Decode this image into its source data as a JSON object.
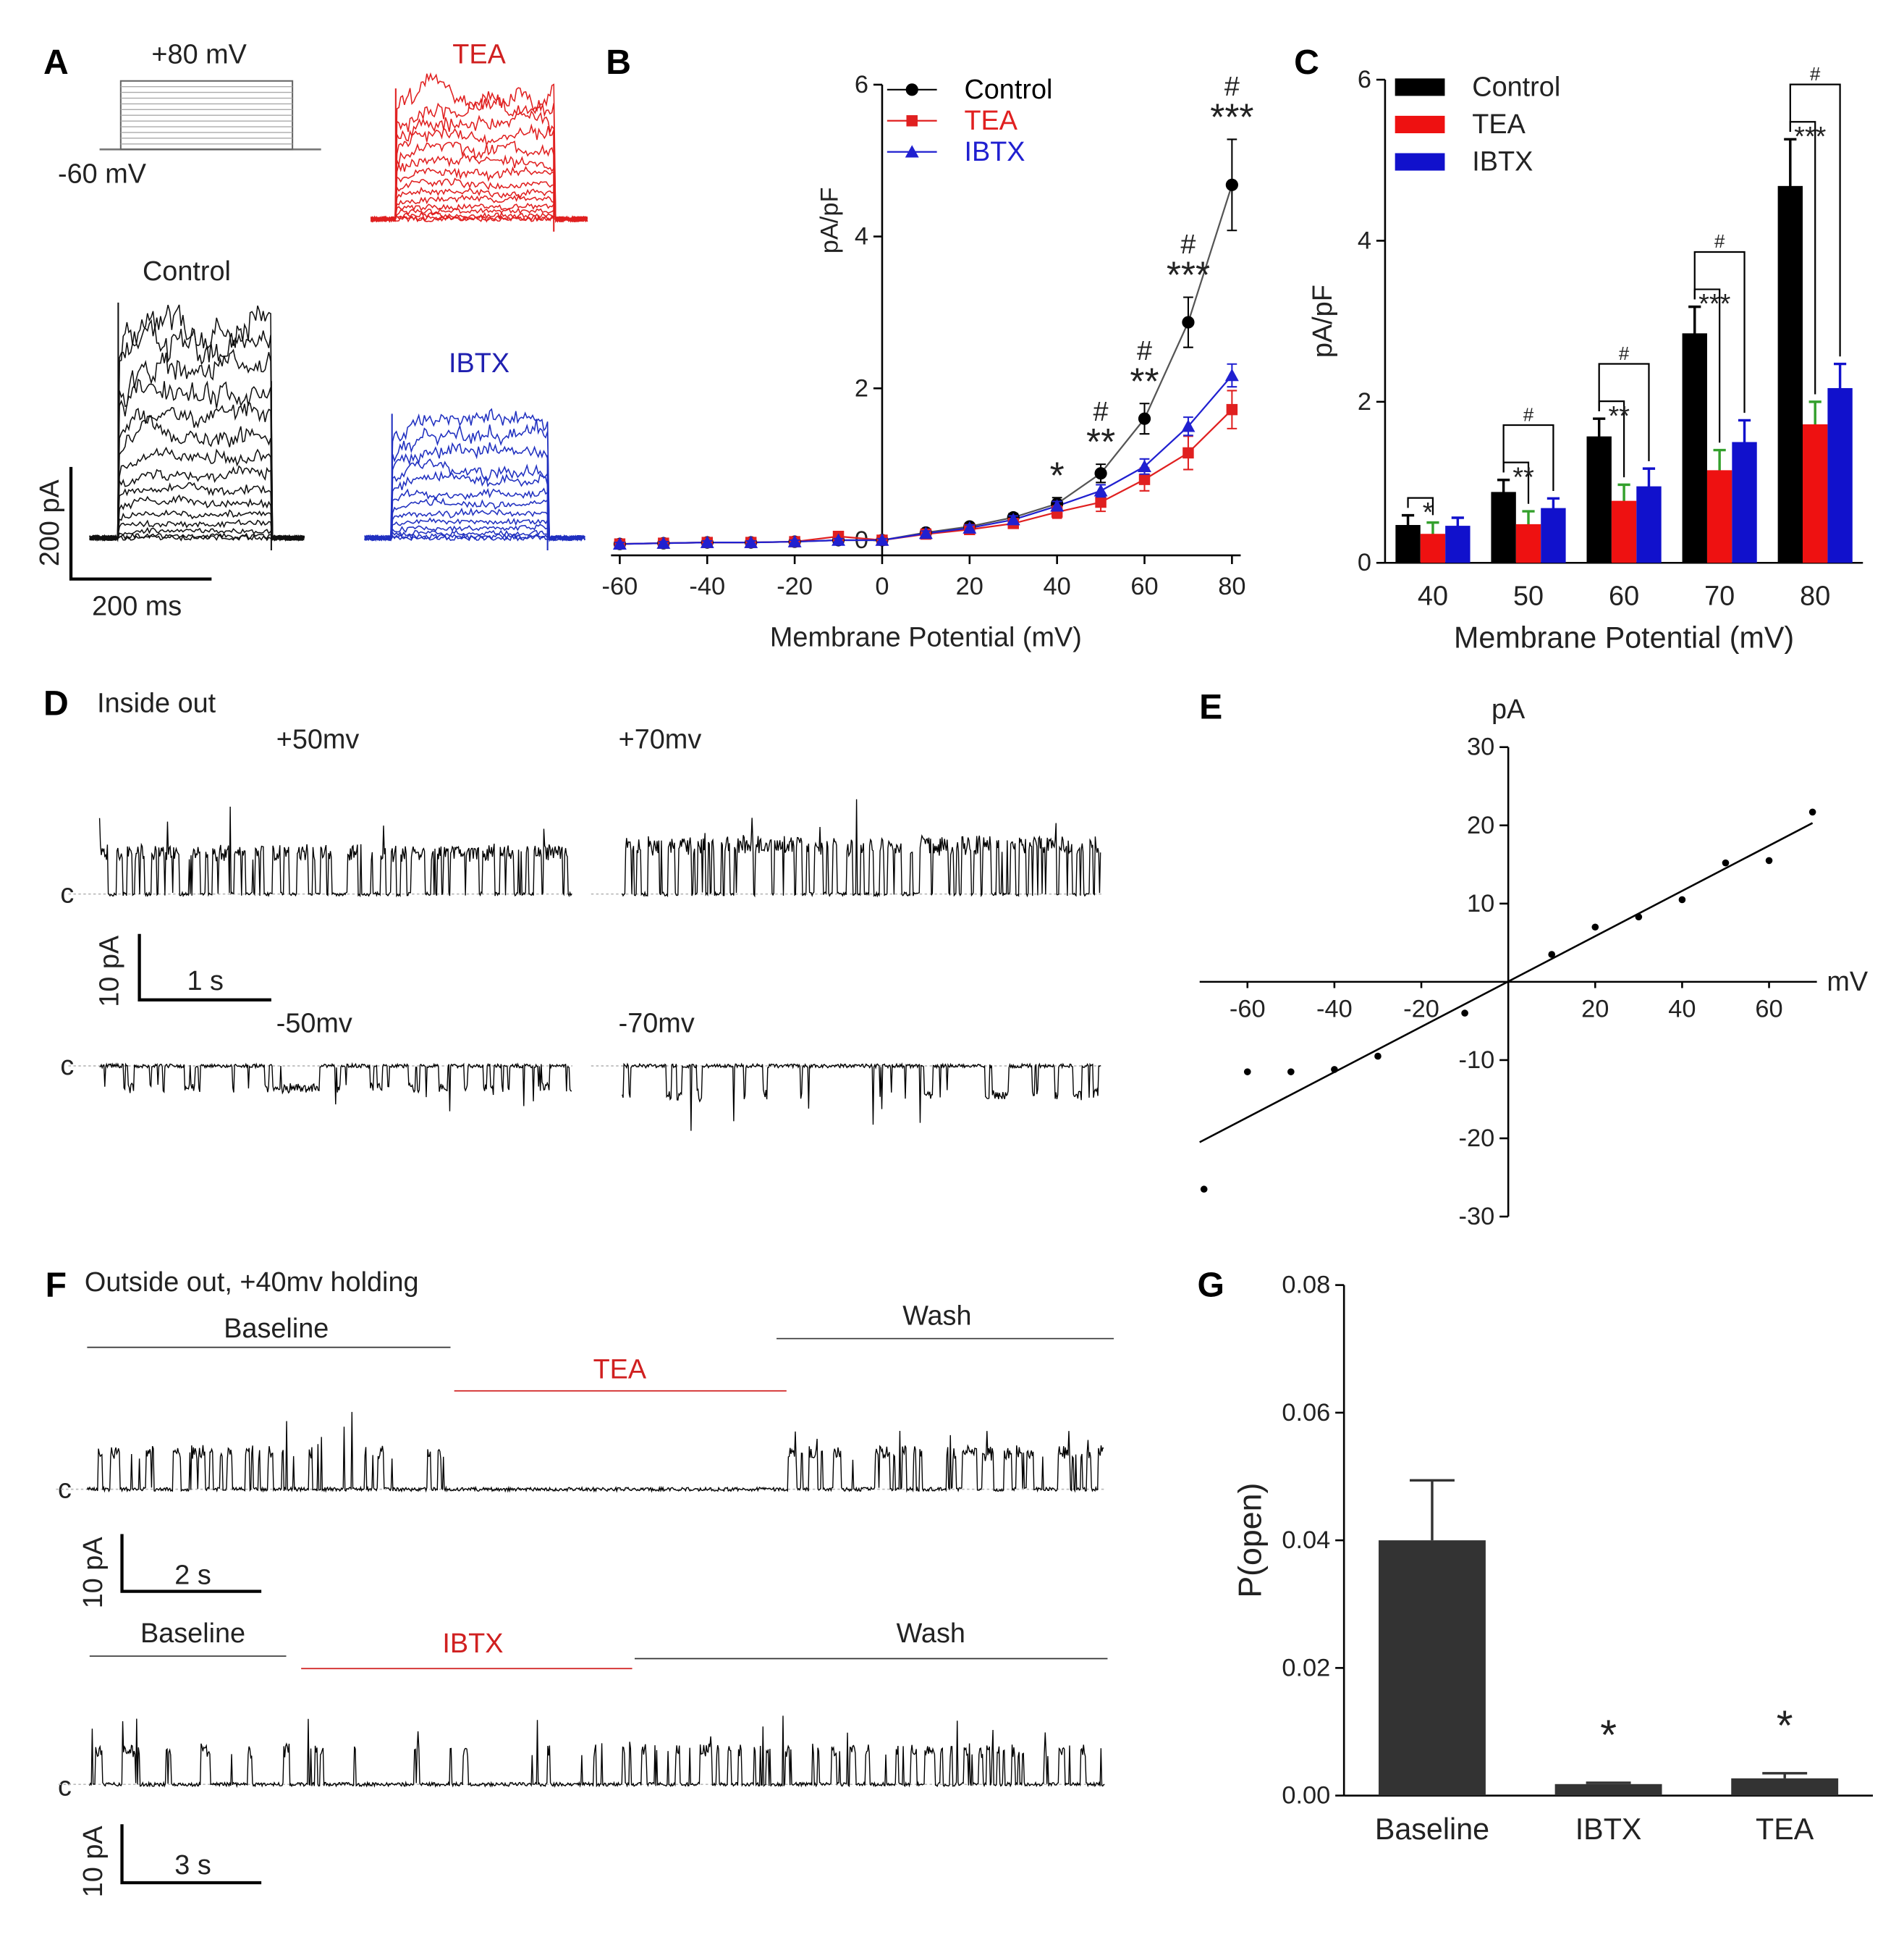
{
  "traces": {
    "a": {
      "letter": "A",
      "protocol_top": "+80 mV",
      "protocol_bottom": "-60 mV",
      "tea": "TEA",
      "control": "Control",
      "ibtx": "IBTX",
      "scale_y": "200 pA",
      "scale_x": "200 ms"
    },
    "d": {
      "letter": "D",
      "title": "Inside out",
      "labels": [
        "+50mv",
        "+70mv",
        "-50mv",
        "-70mv"
      ],
      "closed": "c",
      "scale_y": "10 pA",
      "scale_x": "1 s"
    },
    "f": {
      "letter": "F",
      "title": "Outside out, +40mv holding",
      "closed": "c",
      "top": {
        "baseline": "Baseline",
        "drug": "TEA",
        "wash": "Wash",
        "scale_y": "10 pA",
        "scale_x": "2 s"
      },
      "bottom": {
        "baseline": "Baseline",
        "drug": "IBTX",
        "wash": "Wash",
        "scale_y": "10 pA",
        "scale_x": "3 s"
      }
    }
  },
  "chart_data": [
    {
      "type": "line",
      "panel": "B",
      "x": [
        -60,
        -50,
        -40,
        -30,
        -20,
        -10,
        0,
        10,
        20,
        30,
        40,
        50,
        60,
        70,
        80
      ],
      "series": [
        {
          "name": "Control",
          "color": "#000000",
          "marker": "circle",
          "values": [
            -0.05,
            -0.04,
            -0.03,
            -0.03,
            -0.02,
            0.0,
            0.0,
            0.1,
            0.18,
            0.3,
            0.48,
            0.88,
            1.6,
            2.87,
            4.68
          ],
          "errors": [
            0.02,
            0.02,
            0.02,
            0.02,
            0.02,
            0.02,
            0.02,
            0.03,
            0.04,
            0.05,
            0.08,
            0.12,
            0.2,
            0.33,
            0.6
          ]
        },
        {
          "name": "TEA",
          "color": "#e02020",
          "marker": "square",
          "values": [
            -0.05,
            -0.04,
            -0.03,
            -0.03,
            -0.02,
            0.05,
            0.0,
            0.08,
            0.14,
            0.22,
            0.37,
            0.5,
            0.8,
            1.15,
            1.72
          ],
          "errors": [
            0.02,
            0.02,
            0.02,
            0.02,
            0.02,
            0.03,
            0.02,
            0.03,
            0.04,
            0.05,
            0.08,
            0.12,
            0.15,
            0.22,
            0.25
          ]
        },
        {
          "name": "IBTX",
          "color": "#2020d0",
          "marker": "triangle",
          "values": [
            -0.05,
            -0.04,
            -0.03,
            -0.03,
            -0.02,
            0.0,
            0.0,
            0.09,
            0.16,
            0.27,
            0.45,
            0.65,
            0.97,
            1.5,
            2.17
          ],
          "errors": [
            0.02,
            0.02,
            0.02,
            0.02,
            0.02,
            0.02,
            0.02,
            0.03,
            0.04,
            0.05,
            0.06,
            0.08,
            0.1,
            0.12,
            0.15
          ]
        }
      ],
      "legend_colored": true,
      "xlim": [
        -62,
        82
      ],
      "xticks": [
        -60,
        -40,
        -20,
        0,
        20,
        40,
        60,
        80
      ],
      "ylim": [
        -0.2,
        6
      ],
      "yticks": [
        0,
        2,
        4,
        6
      ],
      "xlabel": "Membrane Potential (mV)",
      "ylabel": "pA/pF",
      "annotations": [
        {
          "x": 40,
          "text": "*"
        },
        {
          "x": 50,
          "text": "**"
        },
        {
          "x": 50,
          "text": "#"
        },
        {
          "x": 60,
          "text": "**"
        },
        {
          "x": 60,
          "text": "#"
        },
        {
          "x": 70,
          "text": "***"
        },
        {
          "x": 70,
          "text": "#"
        },
        {
          "x": 80,
          "text": "***"
        },
        {
          "x": 80,
          "text": "#"
        }
      ]
    },
    {
      "type": "bar",
      "panel": "C",
      "categories": [
        "40",
        "50",
        "60",
        "70",
        "80"
      ],
      "series": [
        {
          "name": "Control",
          "color": "#000000",
          "values": [
            0.47,
            0.88,
            1.57,
            2.85,
            4.68
          ],
          "errors": [
            0.12,
            0.15,
            0.22,
            0.33,
            0.58
          ]
        },
        {
          "name": "TEA",
          "color": "#ee1111",
          "error_color": "#33a02c",
          "values": [
            0.36,
            0.48,
            0.77,
            1.15,
            1.72
          ],
          "errors": [
            0.14,
            0.16,
            0.2,
            0.25,
            0.28
          ]
        },
        {
          "name": "IBTX",
          "color": "#1111cc",
          "values": [
            0.46,
            0.68,
            0.95,
            1.5,
            2.17
          ],
          "errors": [
            0.1,
            0.12,
            0.22,
            0.27,
            0.3
          ]
        }
      ],
      "ylim": [
        0,
        6
      ],
      "yticks": [
        0,
        2,
        4,
        6
      ],
      "xlabel": "Membrane Potential (mV)",
      "ylabel": "pA/pF",
      "annotations": [
        {
          "category": "40",
          "text": "*",
          "pair": [
            "Control",
            "TEA"
          ]
        },
        {
          "category": "50",
          "text": "**",
          "pair": [
            "Control",
            "TEA"
          ]
        },
        {
          "category": "50",
          "text": "#",
          "pair": [
            "Control",
            "IBTX"
          ]
        },
        {
          "category": "60",
          "text": "**",
          "pair": [
            "Control",
            "TEA"
          ]
        },
        {
          "category": "60",
          "text": "#",
          "pair": [
            "Control",
            "IBTX"
          ]
        },
        {
          "category": "70",
          "text": "***",
          "pair": [
            "Control",
            "TEA"
          ]
        },
        {
          "category": "70",
          "text": "#",
          "pair": [
            "Control",
            "IBTX"
          ]
        },
        {
          "category": "80",
          "text": "***",
          "pair": [
            "Control",
            "TEA"
          ]
        },
        {
          "category": "80",
          "text": "#",
          "pair": [
            "Control",
            "IBTX"
          ]
        }
      ]
    },
    {
      "type": "scatter",
      "panel": "E",
      "x": [
        -70,
        -60,
        -50,
        -40,
        -30,
        -10,
        10,
        20,
        30,
        40,
        50,
        60,
        70
      ],
      "values": [
        -26.5,
        -11.5,
        -11.5,
        -11.2,
        -9.5,
        -4,
        3.5,
        7,
        8.3,
        10.5,
        15.2,
        15.5,
        21.7
      ],
      "fit": {
        "x": [
          -71,
          70
        ],
        "y": [
          -20.5,
          20.3
        ]
      },
      "color": "#000000",
      "xlim": [
        -71,
        71
      ],
      "xticks": [
        -60,
        -40,
        -20,
        20,
        40,
        60
      ],
      "ylim": [
        -30,
        30
      ],
      "yticks": [
        -30,
        -20,
        -10,
        10,
        20,
        30
      ],
      "xlabel": "mV",
      "ylabel": "pA"
    },
    {
      "type": "bar",
      "panel": "G",
      "categories": [
        "Baseline",
        "IBTX",
        "TEA"
      ],
      "values": [
        0.04,
        0.0018,
        0.0027
      ],
      "errors": [
        0.0094,
        0.0002,
        0.0008
      ],
      "color": "#333333",
      "ylim": [
        0,
        0.08
      ],
      "yticks": [
        {
          "value": 0,
          "label": "0.00"
        },
        {
          "value": 0.02,
          "label": "0.02"
        },
        {
          "value": 0.04,
          "label": "0.04"
        },
        {
          "value": 0.06,
          "label": "0.06"
        },
        {
          "value": 0.08,
          "label": "0.08"
        }
      ],
      "ylabel": "P(open)",
      "annotations": [
        {
          "category": "IBTX",
          "text": "*"
        },
        {
          "category": "TEA",
          "text": "*"
        }
      ]
    }
  ]
}
